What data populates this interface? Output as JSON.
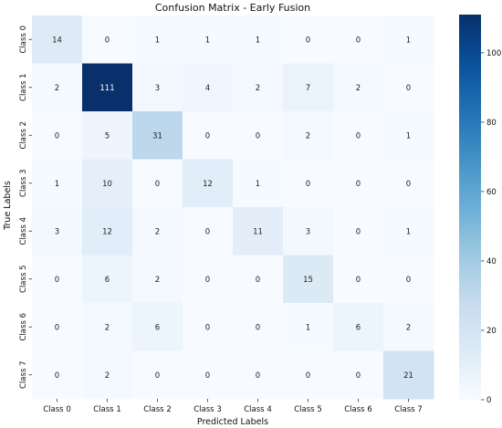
{
  "chart_data": {
    "type": "heatmap",
    "title": "Confusion Matrix - Early Fusion",
    "xlabel": "Predicted Labels",
    "ylabel": "True Labels",
    "x_categories": [
      "Class 0",
      "Class 1",
      "Class 2",
      "Class 3",
      "Class 4",
      "Class 5",
      "Class 6",
      "Class 7"
    ],
    "y_categories": [
      "Class 0",
      "Class 1",
      "Class 2",
      "Class 3",
      "Class 4",
      "Class 5",
      "Class 6",
      "Class 7"
    ],
    "values": [
      [
        14,
        0,
        1,
        1,
        1,
        0,
        0,
        1
      ],
      [
        2,
        111,
        3,
        4,
        2,
        7,
        2,
        0
      ],
      [
        0,
        5,
        31,
        0,
        0,
        2,
        0,
        1
      ],
      [
        1,
        10,
        0,
        12,
        1,
        0,
        0,
        0
      ],
      [
        3,
        12,
        2,
        0,
        11,
        3,
        0,
        1
      ],
      [
        0,
        6,
        2,
        0,
        0,
        15,
        0,
        0
      ],
      [
        0,
        2,
        6,
        0,
        0,
        1,
        6,
        2
      ],
      [
        0,
        2,
        0,
        0,
        0,
        0,
        0,
        21
      ]
    ],
    "colormap": "Blues",
    "colorbar": {
      "min": 0,
      "max": 111,
      "ticks": [
        0,
        20,
        40,
        60,
        80,
        100
      ]
    },
    "grid": false,
    "legend": "colorbar-right"
  }
}
